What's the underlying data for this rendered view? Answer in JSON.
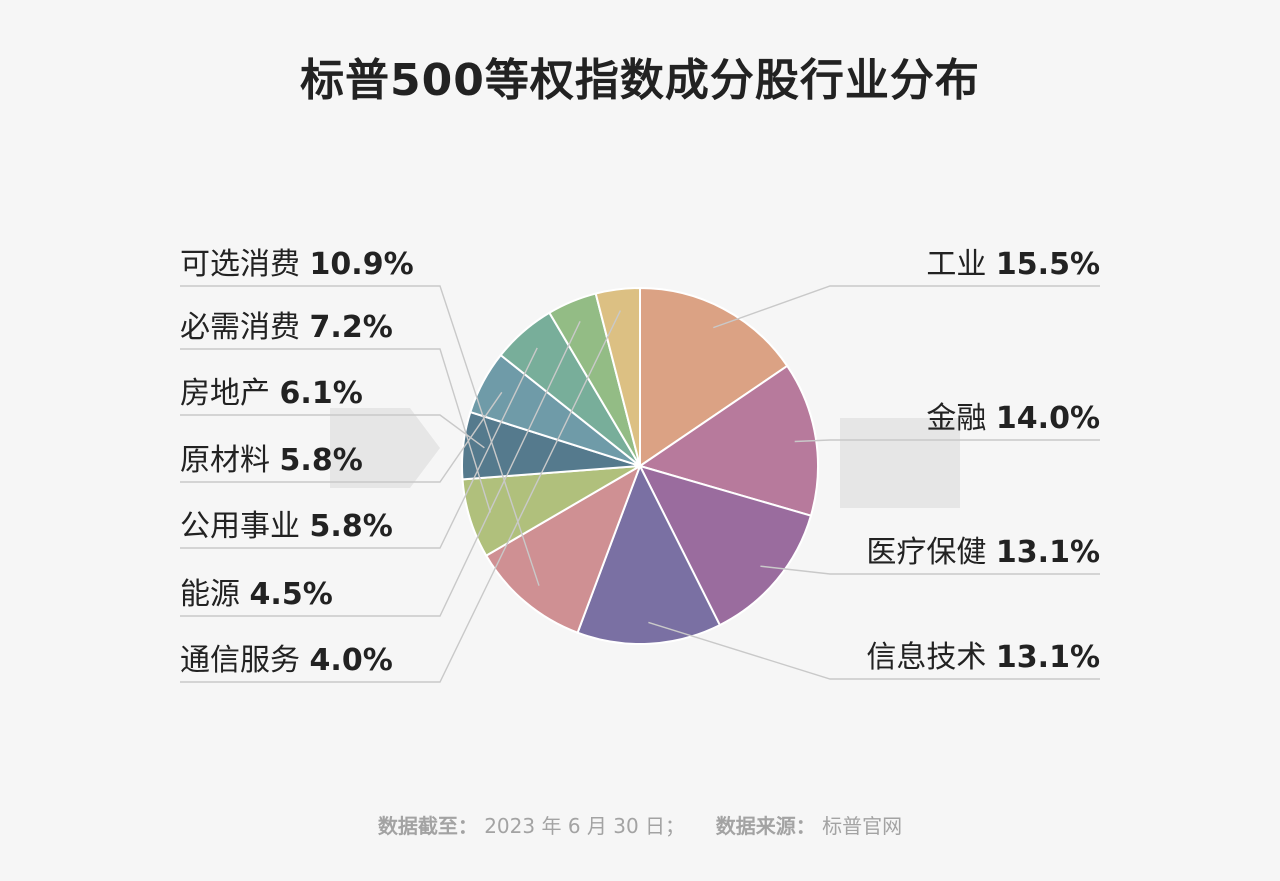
{
  "title": "标普500等权指数成分股行业分布",
  "chart_data": {
    "type": "pie",
    "title": "标普500等权指数成分股行业分布",
    "slices": [
      {
        "label": "工业",
        "value": 15.5,
        "display": "15.5%",
        "color": "#dba284",
        "side": "right"
      },
      {
        "label": "金融",
        "value": 14.0,
        "display": "14.0%",
        "color": "#b77a9c",
        "side": "right"
      },
      {
        "label": "医疗保健",
        "value": 13.1,
        "display": "13.1%",
        "color": "#9a6c9e",
        "side": "right"
      },
      {
        "label": "信息技术",
        "value": 13.1,
        "display": "13.1%",
        "color": "#7a70a3",
        "side": "right"
      },
      {
        "label": "可选消费",
        "value": 10.9,
        "display": "10.9%",
        "color": "#cf9093",
        "side": "left"
      },
      {
        "label": "必需消费",
        "value": 7.2,
        "display": "7.2%",
        "color": "#b0c07c",
        "side": "left"
      },
      {
        "label": "房地产",
        "value": 6.1,
        "display": "6.1%",
        "color": "#557a8d",
        "side": "left"
      },
      {
        "label": "原材料",
        "value": 5.8,
        "display": "5.8%",
        "color": "#6f9ba8",
        "side": "left"
      },
      {
        "label": "公用事业",
        "value": 5.8,
        "display": "5.8%",
        "color": "#78ae9a",
        "side": "left"
      },
      {
        "label": "能源",
        "value": 4.5,
        "display": "4.5%",
        "color": "#93bc85",
        "side": "left"
      },
      {
        "label": "通信服务",
        "value": 4.0,
        "display": "4.0%",
        "color": "#dcc083",
        "side": "left"
      }
    ]
  },
  "footer": {
    "date_label": "数据截至：",
    "date_value": "2023 年 6 月 30 日；",
    "source_label": "数据来源：",
    "source_value": "标普官网"
  }
}
